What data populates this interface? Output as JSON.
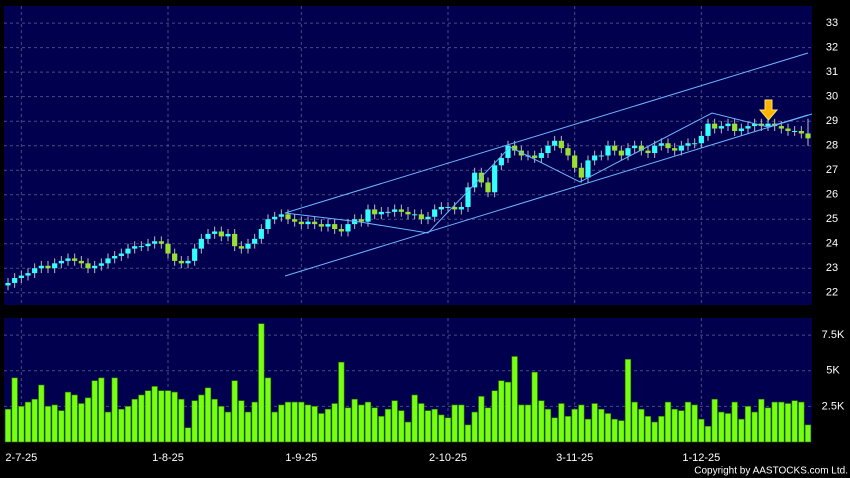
{
  "chart_data": {
    "type": "candlestick",
    "copyright": "Copyright by AASTOCKS.com Ltd.",
    "up_color": "#33ffff",
    "down_color": "#99e033",
    "volume_color": "#77ff11",
    "categories": [
      null,
      null,
      "2-7-25",
      null,
      null,
      null,
      null,
      null,
      null,
      null,
      null,
      null,
      null,
      null,
      null,
      null,
      null,
      null,
      null,
      null,
      null,
      null,
      null,
      null,
      "1-8-25",
      null,
      null,
      null,
      null,
      null,
      null,
      null,
      null,
      null,
      null,
      null,
      null,
      null,
      null,
      null,
      null,
      null,
      null,
      null,
      "1-9-25",
      null,
      null,
      null,
      null,
      null,
      null,
      null,
      null,
      null,
      null,
      null,
      null,
      null,
      null,
      null,
      null,
      null,
      null,
      null,
      null,
      null,
      "2-10-25",
      null,
      null,
      null,
      null,
      null,
      null,
      null,
      null,
      null,
      null,
      null,
      null,
      null,
      null,
      null,
      null,
      null,
      null,
      "3-11-25",
      null,
      null,
      null,
      null,
      null,
      null,
      null,
      null,
      null,
      null,
      null,
      null,
      null,
      null,
      null,
      null,
      null,
      null,
      "1-12-25",
      null,
      null,
      null,
      null,
      null,
      null,
      null,
      null,
      null,
      null,
      null,
      null,
      null,
      null,
      null,
      null
    ],
    "open": [
      22.3,
      22.4,
      22.6,
      22.7,
      22.8,
      23.0,
      23.1,
      23.0,
      23.2,
      23.3,
      23.4,
      23.3,
      23.2,
      23.0,
      23.1,
      23.2,
      23.4,
      23.5,
      23.6,
      23.8,
      23.9,
      23.9,
      24.0,
      24.1,
      24.0,
      23.6,
      23.3,
      23.2,
      23.3,
      23.8,
      24.2,
      24.4,
      24.5,
      24.3,
      24.4,
      23.9,
      23.8,
      24.0,
      24.2,
      24.6,
      25.0,
      25.1,
      25.2,
      25.0,
      24.9,
      24.8,
      24.9,
      24.8,
      24.7,
      24.8,
      24.6,
      24.5,
      24.8,
      25.0,
      24.9,
      25.4,
      25.2,
      25.3,
      25.3,
      25.4,
      25.3,
      25.2,
      25.2,
      25.0,
      25.1,
      25.4,
      25.5,
      25.5,
      25.4,
      25.5,
      26.3,
      26.9,
      26.5,
      26.1,
      27.2,
      27.5,
      28.0,
      27.8,
      27.6,
      27.6,
      27.5,
      27.7,
      28.0,
      28.2,
      27.9,
      27.6,
      27.1,
      26.7,
      27.4,
      27.6,
      27.6,
      28.0,
      27.8,
      27.6,
      27.9,
      28.0,
      27.8,
      27.7,
      28.0,
      28.1,
      27.9,
      27.8,
      28.0,
      28.1,
      28.1,
      28.4,
      28.9,
      28.7,
      28.8,
      28.9,
      28.6,
      28.7,
      28.8,
      28.9,
      28.8,
      28.9,
      28.8,
      28.7,
      28.6,
      28.6,
      28.5
    ],
    "high": [
      22.6,
      22.8,
      22.9,
      23.0,
      23.2,
      23.3,
      23.3,
      23.4,
      23.5,
      23.6,
      23.6,
      23.5,
      23.4,
      23.3,
      23.4,
      23.6,
      23.7,
      23.8,
      24.0,
      24.1,
      24.1,
      24.2,
      24.3,
      24.3,
      24.2,
      23.8,
      23.5,
      23.5,
      24.0,
      24.4,
      24.6,
      24.7,
      24.7,
      24.6,
      24.6,
      24.1,
      24.2,
      24.4,
      24.8,
      25.2,
      25.3,
      25.4,
      25.4,
      25.2,
      25.1,
      25.1,
      25.1,
      25.0,
      25.0,
      25.0,
      24.8,
      25.0,
      25.2,
      25.2,
      25.6,
      25.6,
      25.5,
      25.5,
      25.6,
      25.6,
      25.5,
      25.4,
      25.4,
      25.3,
      25.6,
      25.7,
      25.7,
      25.7,
      25.7,
      26.5,
      27.1,
      27.1,
      26.7,
      27.4,
      27.7,
      28.2,
      28.2,
      28.0,
      27.8,
      27.8,
      27.9,
      28.2,
      28.4,
      28.4,
      28.1,
      27.8,
      27.3,
      27.6,
      27.8,
      27.8,
      28.2,
      28.2,
      28.0,
      28.1,
      28.2,
      28.2,
      28.0,
      28.2,
      28.3,
      28.3,
      28.1,
      28.2,
      28.3,
      28.3,
      28.6,
      29.1,
      29.1,
      29.0,
      29.1,
      29.1,
      28.9,
      29.0,
      29.1,
      29.1,
      29.1,
      29.1,
      29.0,
      28.9,
      28.8,
      28.8,
      29.1
    ],
    "low": [
      22.1,
      22.2,
      22.4,
      22.5,
      22.6,
      22.8,
      22.8,
      22.8,
      23.0,
      23.1,
      23.1,
      23.0,
      22.8,
      22.8,
      22.9,
      23.0,
      23.2,
      23.3,
      23.4,
      23.6,
      23.7,
      23.7,
      23.8,
      23.8,
      23.4,
      23.1,
      23.0,
      23.0,
      23.1,
      23.6,
      24.0,
      24.2,
      24.1,
      24.1,
      23.7,
      23.6,
      23.6,
      23.8,
      24.0,
      24.4,
      24.8,
      24.9,
      24.8,
      24.7,
      24.6,
      24.6,
      24.6,
      24.5,
      24.5,
      24.4,
      24.3,
      24.3,
      24.6,
      24.7,
      24.7,
      25.0,
      25.0,
      25.1,
      25.1,
      25.1,
      25.0,
      25.0,
      24.8,
      24.8,
      24.9,
      25.2,
      25.3,
      25.2,
      25.2,
      25.3,
      26.1,
      26.3,
      25.9,
      25.9,
      27.0,
      27.3,
      27.6,
      27.4,
      27.4,
      27.3,
      27.3,
      27.5,
      27.8,
      27.7,
      27.4,
      26.9,
      26.5,
      26.5,
      27.2,
      27.4,
      27.4,
      27.6,
      27.4,
      27.4,
      27.7,
      27.6,
      27.5,
      27.5,
      27.8,
      27.7,
      27.6,
      27.6,
      27.8,
      27.9,
      27.9,
      28.2,
      28.5,
      28.5,
      28.6,
      28.4,
      28.4,
      28.5,
      28.6,
      28.6,
      28.6,
      28.6,
      28.5,
      28.4,
      28.4,
      28.3,
      28.0
    ],
    "close": [
      22.4,
      22.6,
      22.7,
      22.8,
      23.0,
      23.1,
      23.0,
      23.2,
      23.3,
      23.4,
      23.3,
      23.2,
      23.0,
      23.1,
      23.2,
      23.4,
      23.5,
      23.6,
      23.8,
      23.9,
      23.9,
      24.0,
      24.1,
      24.0,
      23.6,
      23.3,
      23.2,
      23.3,
      23.8,
      24.2,
      24.4,
      24.5,
      24.3,
      24.4,
      23.9,
      23.8,
      24.0,
      24.2,
      24.6,
      25.0,
      25.1,
      25.2,
      25.0,
      24.9,
      24.8,
      24.9,
      24.8,
      24.7,
      24.8,
      24.6,
      24.5,
      24.8,
      25.0,
      24.9,
      25.4,
      25.2,
      25.3,
      25.3,
      25.4,
      25.3,
      25.2,
      25.2,
      25.0,
      25.1,
      25.4,
      25.5,
      25.5,
      25.4,
      25.5,
      26.3,
      26.9,
      26.5,
      26.1,
      27.2,
      27.5,
      28.0,
      27.8,
      27.6,
      27.6,
      27.5,
      27.7,
      28.0,
      28.2,
      27.9,
      27.6,
      27.1,
      26.7,
      27.4,
      27.6,
      27.6,
      28.0,
      27.8,
      27.6,
      27.9,
      28.0,
      27.8,
      27.7,
      28.0,
      28.1,
      27.9,
      27.8,
      28.0,
      28.1,
      28.1,
      28.4,
      28.9,
      28.7,
      28.8,
      28.9,
      28.6,
      28.7,
      28.8,
      28.9,
      28.8,
      28.9,
      28.8,
      28.7,
      28.6,
      28.6,
      28.5,
      28.3
    ],
    "volume": [
      2300,
      4500,
      2500,
      2800,
      3000,
      4000,
      2500,
      2600,
      2200,
      3500,
      3300,
      2700,
      3100,
      4300,
      4500,
      2100,
      4500,
      2300,
      2500,
      3000,
      3300,
      3600,
      3900,
      3600,
      3600,
      3500,
      3000,
      1000,
      2900,
      3300,
      3800,
      3000,
      2500,
      2100,
      4300,
      2900,
      2100,
      2800,
      8300,
      4500,
      2100,
      2600,
      2800,
      2800,
      2800,
      2600,
      2500,
      2000,
      2300,
      2700,
      5600,
      2400,
      3000,
      2600,
      2800,
      2400,
      1800,
      2300,
      2900,
      2200,
      1400,
      3300,
      2700,
      2200,
      2300,
      1900,
      1700,
      2600,
      2600,
      1200,
      2100,
      3200,
      2400,
      3600,
      4300,
      4200,
      6000,
      2600,
      2600,
      4900,
      2900,
      2300,
      1700,
      2700,
      1800,
      2300,
      2600,
      1600,
      2700,
      2300,
      2000,
      1600,
      1500,
      5800,
      2800,
      2300,
      1800,
      1400,
      1800,
      2800,
      2300,
      2200,
      2800,
      2600,
      1600,
      1100,
      3000,
      2100,
      2000,
      2800,
      1600,
      2500,
      2100,
      3000,
      2400,
      2800,
      2800,
      2700,
      2900,
      2800,
      1200
    ],
    "ylim": [
      21.5,
      33.7
    ],
    "yticks": [
      22,
      23,
      24,
      25,
      26,
      27,
      28,
      29,
      30,
      31,
      32,
      33
    ],
    "vol_ylim": [
      0,
      8700
    ],
    "vol_yticks": [
      {
        "value": 2500,
        "label": "2.5K"
      },
      {
        "value": 5000,
        "label": "5K"
      },
      {
        "value": 7500,
        "label": "7.5K"
      }
    ],
    "grid": true
  }
}
